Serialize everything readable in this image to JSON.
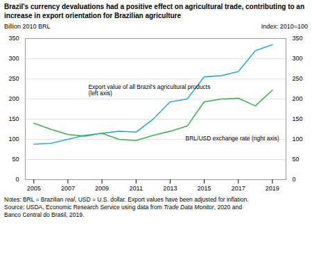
{
  "chart_data": {
    "type": "line",
    "title": "Brazil's currency devaluations had a positive effect on agricultural trade, contributing to an increase in export orientation for Brazilian agriculture",
    "ylabel": "Billion 2010 BRL",
    "y2label": "Index: 2010=100",
    "x": [
      2005,
      2006,
      2007,
      2008,
      2009,
      2010,
      2011,
      2012,
      2013,
      2014,
      2015,
      2016,
      2017,
      2018,
      2019
    ],
    "series": [
      {
        "color": "#29abe2",
        "values": [
          88,
          90,
          100,
          110,
          115,
          120,
          118,
          150,
          193,
          200,
          255,
          258,
          268,
          320,
          335
        ]
      },
      {
        "color": "#39b54a",
        "axis": "y2",
        "values": [
          140,
          125,
          112,
          108,
          115,
          100,
          97,
          110,
          120,
          133,
          193,
          200,
          202,
          183,
          222
        ]
      }
    ],
    "xlim": [
      2004.5,
      2019.8
    ],
    "xticks": [
      2005,
      2007,
      2009,
      2011,
      2013,
      2015,
      2017,
      2019
    ],
    "ylim": [
      0,
      350
    ],
    "yticks": [
      0,
      50,
      100,
      150,
      200,
      250,
      300,
      350
    ],
    "y2lim": [
      0,
      350
    ],
    "y2ticks": [
      0,
      50,
      100,
      150,
      200,
      250,
      300,
      350
    ],
    "grid": true,
    "annotations": [
      {
        "text": "Export value of all Brazil's agricultural products\n(left axis)",
        "x": 2008.2,
        "y": 235
      },
      {
        "text": "BRL/USD exchange rate (right axis)",
        "x": 2013.9,
        "y": 108
      }
    ],
    "notes": [
      [
        {
          "text": "Notes: BRL = Brazilian "
        },
        {
          "text": "real",
          "italic": true
        },
        {
          "text": ", USD = U.S. dollar. Export values have been adjusted for inflation."
        }
      ],
      [
        {
          "text": "Source: USDA, Economic Research Service using data from "
        },
        {
          "text": "Trade Data Monitor",
          "italic": true
        },
        {
          "text": ", 2020 and"
        }
      ],
      [
        {
          "text": "Banco Central do Brasil, 2019."
        }
      ]
    ]
  }
}
